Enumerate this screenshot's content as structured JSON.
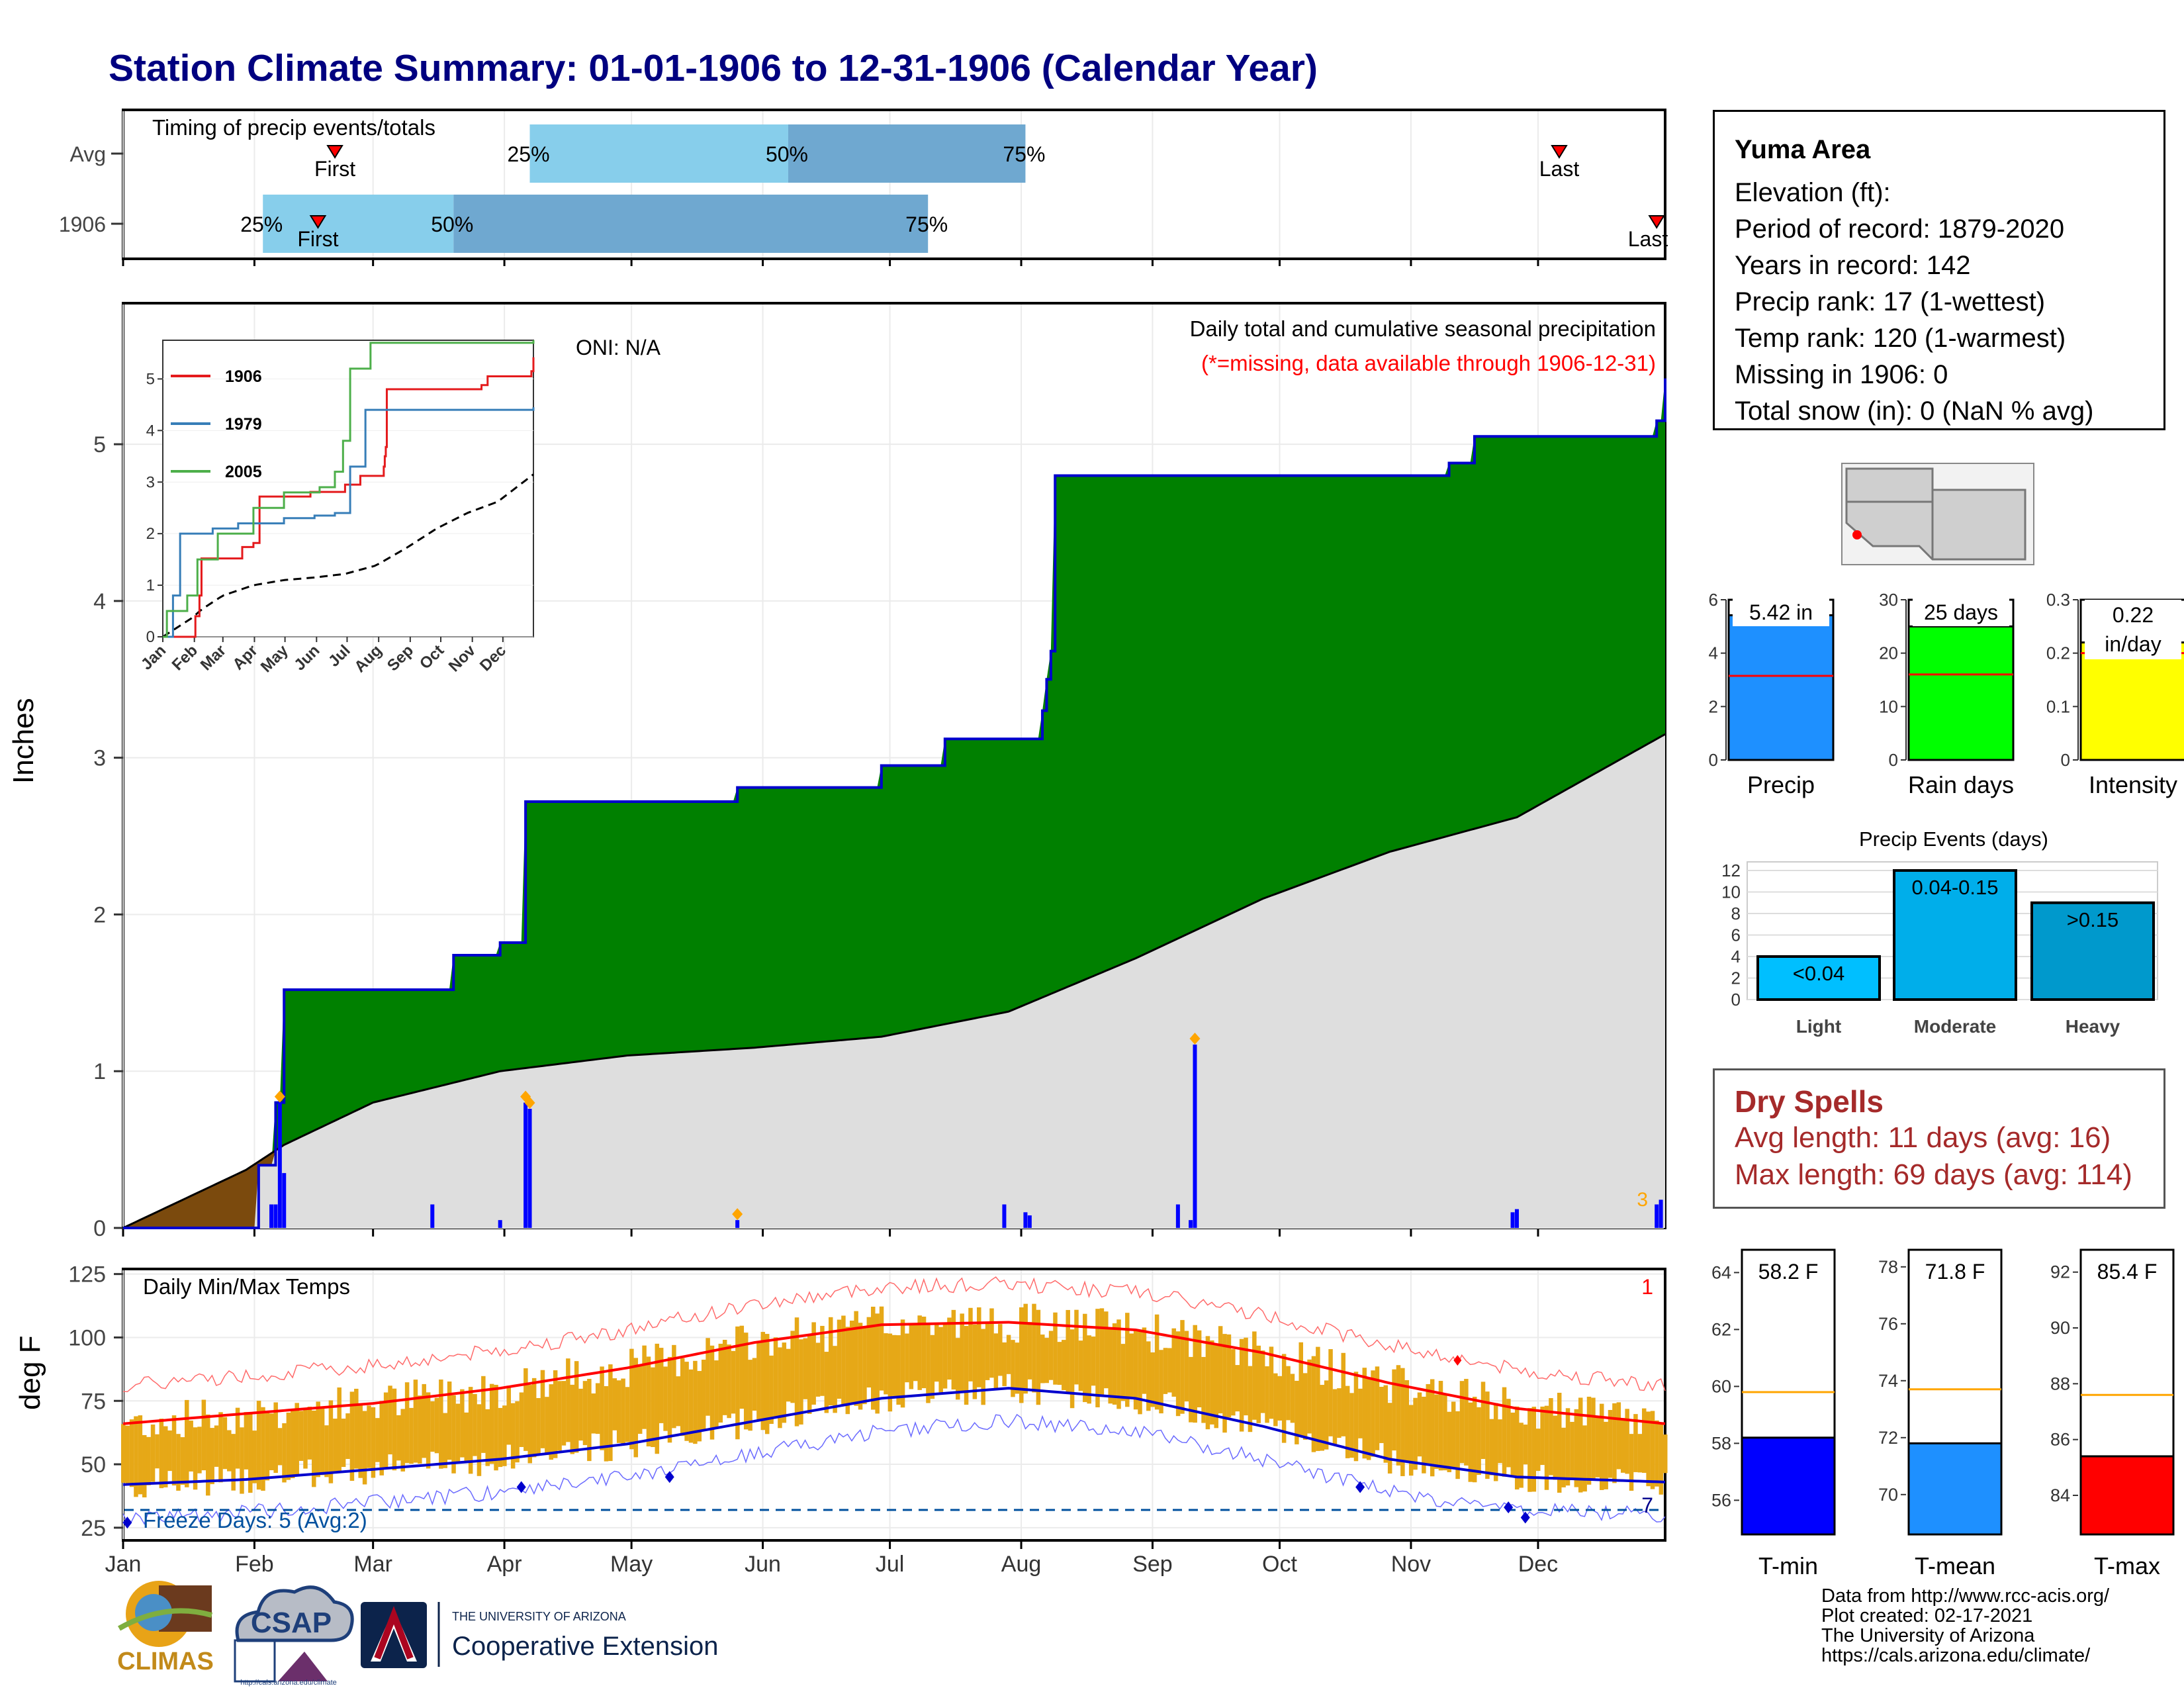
{
  "title": "Station Climate Summary: 01-01-1906 to 12-31-1906 (Calendar Year)",
  "timing": {
    "title": "Timing of precip events/totals",
    "rows": [
      {
        "label": "Avg",
        "first_label": "First",
        "last_label": "Last",
        "first_doy": 51,
        "last_doy": 340,
        "p25": 97,
        "p50": 158,
        "p75": 214
      },
      {
        "label": "1906",
        "first_label": "First",
        "last_label": "Last",
        "first_doy": 47,
        "last_doy": 363,
        "p25": 34,
        "p50": 79,
        "p75": 191
      }
    ],
    "pct_labels": [
      "25%",
      "50%",
      "75%"
    ]
  },
  "info": {
    "station": "Yuma Area",
    "lines": [
      "Elevation (ft):",
      "Period of record: 1879-2020",
      "Years in record: 142",
      "Precip rank: 17 (1-wettest)",
      "Temp rank: 120 (1-warmest)",
      "Missing in 1906: 0",
      "Total snow (in): 0 (NaN % avg)"
    ]
  },
  "precip_panel": {
    "ylabel": "Inches",
    "oni": "ONI: N/A",
    "subtitle": "Daily total and cumulative seasonal precipitation",
    "missing_note": "(*=missing, data available through 1906-12-31)",
    "corner_count": "3"
  },
  "inset": {
    "legend": [
      {
        "name": "1906",
        "color": "#e41a1c"
      },
      {
        "name": "1979",
        "color": "#377eb8"
      },
      {
        "name": "2005",
        "color": "#4daf4a"
      }
    ],
    "months": [
      "Jan",
      "Feb",
      "Mar",
      "Apr",
      "May",
      "Jun",
      "Jul",
      "Aug",
      "Sep",
      "Oct",
      "Nov",
      "Dec"
    ]
  },
  "temp_panel": {
    "title": "Daily Min/Max Temps",
    "ylabel": "deg F",
    "freeze_label": "Freeze Days: 5 (Avg:2)",
    "corner_top": "1",
    "corner_bottom": "7",
    "colors": {
      "normal_max": "#ff0000",
      "normal_min": "#0000cd",
      "bars": "#e6a817"
    }
  },
  "months": [
    "Jan",
    "Feb",
    "Mar",
    "Apr",
    "May",
    "Jun",
    "Jul",
    "Aug",
    "Sep",
    "Oct",
    "Nov",
    "Dec"
  ],
  "mini_bars": [
    {
      "label": "Precip",
      "value_label": "5.42 in",
      "value": 5.42,
      "normal": 3.15,
      "ymax": 6,
      "ticks": [
        0,
        2,
        4,
        6
      ],
      "color": "#1e90ff"
    },
    {
      "label": "Rain days",
      "value_label": "25 days",
      "value": 25,
      "normal": 16,
      "ymax": 30,
      "ticks": [
        0,
        10,
        20,
        30
      ],
      "color": "#00ff00"
    },
    {
      "label": "Intensity",
      "value_label": "0.22 in/day",
      "value": 0.22,
      "normal": 0.2,
      "ymax": 0.3,
      "ticks": [
        0.0,
        0.1,
        0.2,
        0.3
      ],
      "color": "#ffff00"
    }
  ],
  "events": {
    "title": "Precip Events (days)",
    "categories": [
      "Light",
      "Moderate",
      "Heavy"
    ],
    "labels": [
      "<0.04",
      "0.04-0.15",
      ">0.15"
    ],
    "values": [
      4,
      12,
      9
    ],
    "colors": [
      "#00bfff",
      "#00aeea",
      "#0099cc"
    ],
    "ticks": [
      0,
      2,
      4,
      6,
      8,
      10,
      12
    ]
  },
  "dry_spells": {
    "title": "Dry Spells",
    "avg": "Avg length: 11 days (avg: 16)",
    "max": "Max length: 69 days (avg: 114)"
  },
  "temp_bars": [
    {
      "label": "T-min",
      "value_label": "58.2 F",
      "value": 58.2,
      "normal": 59.8,
      "ymin": 54.8,
      "ymax": 64.8,
      "ticks": [
        56,
        58,
        60,
        62,
        64
      ],
      "color": "#0000ff"
    },
    {
      "label": "T-mean",
      "value_label": "71.8 F",
      "value": 71.8,
      "normal": 73.7,
      "ymin": 68.6,
      "ymax": 78.6,
      "ticks": [
        70,
        72,
        74,
        76,
        78
      ],
      "color": "#1e90ff"
    },
    {
      "label": "T-max",
      "value_label": "85.4 F",
      "value": 85.4,
      "normal": 87.6,
      "ymin": 82.6,
      "ymax": 92.8,
      "ticks": [
        84,
        86,
        88,
        90,
        92
      ],
      "color": "#ff0000"
    }
  ],
  "logos": {
    "climas": "CLIMAS",
    "csap": "CSAP",
    "csap_url": "http://cals.arizona.edu/climate",
    "ua_top": "THE UNIVERSITY OF ARIZONA",
    "ua_bottom": "Cooperative Extension"
  },
  "credits": [
    "Data from http://www.rcc-acis.org/",
    "Plot created: 02-17-2021",
    "The University of Arizona",
    "https://cals.arizona.edu/climate/"
  ],
  "chart_data": [
    {
      "type": "bar",
      "title": "Timing of precip events/totals",
      "categories": [
        "Avg",
        "1906"
      ],
      "series": [
        {
          "name": "First",
          "values": [
            51,
            47
          ]
        },
        {
          "name": "25%",
          "values": [
            97,
            34
          ]
        },
        {
          "name": "50%",
          "values": [
            158,
            79
          ]
        },
        {
          "name": "75%",
          "values": [
            214,
            191
          ]
        },
        {
          "name": "Last",
          "values": [
            340,
            363
          ]
        }
      ]
    },
    {
      "type": "area",
      "title": "Daily total and cumulative seasonal precipitation",
      "ylabel": "Inches",
      "ylim": [
        0,
        5.9
      ],
      "series": [
        {
          "name": "1906",
          "x": [
            1,
            33,
            37,
            39,
            73,
            79,
            90,
            96,
            109,
            146,
            171,
            180,
            195,
            211,
            218,
            219,
            220,
            221,
            313,
            314,
            320,
            363,
            365
          ],
          "y": [
            0.0,
            0.4,
            0.8,
            1.52,
            1.52,
            1.74,
            1.82,
            2.72,
            2.72,
            2.81,
            2.81,
            2.95,
            3.12,
            3.12,
            3.3,
            3.5,
            3.68,
            4.8,
            4.8,
            4.88,
            5.05,
            5.15,
            5.42
          ]
        },
        {
          "name": "Average",
          "x": [
            1,
            30,
            39,
            60,
            90,
            120,
            150,
            180,
            210,
            240,
            270,
            300,
            330,
            365
          ],
          "y": [
            0.0,
            0.37,
            0.53,
            0.8,
            1.0,
            1.1,
            1.15,
            1.22,
            1.38,
            1.72,
            2.1,
            2.4,
            2.62,
            3.15
          ]
        }
      ],
      "daily": {
        "x": [
          36,
          37,
          38,
          39,
          74,
          90,
          96,
          97,
          146,
          209,
          214,
          215,
          250,
          253,
          254,
          329,
          330,
          363,
          364
        ],
        "y": [
          0.15,
          0.15,
          0.8,
          0.35,
          0.15,
          0.05,
          0.8,
          0.76,
          0.05,
          0.15,
          0.1,
          0.08,
          0.15,
          0.05,
          1.17,
          0.1,
          0.12,
          0.15,
          0.18
        ]
      }
    },
    {
      "type": "line",
      "title": "Daily Min/Max Temps",
      "ylabel": "deg F",
      "ylim": [
        20,
        127
      ],
      "series": [
        {
          "name": "Normal max",
          "x": [
            1,
            30,
            60,
            90,
            120,
            150,
            180,
            210,
            240,
            270,
            300,
            330,
            365
          ],
          "y": [
            66,
            70,
            74,
            80,
            88,
            98,
            105,
            106,
            103,
            94,
            82,
            72,
            66
          ]
        },
        {
          "name": "Normal min",
          "x": [
            1,
            30,
            60,
            90,
            120,
            150,
            180,
            210,
            240,
            270,
            300,
            330,
            365
          ],
          "y": [
            42,
            44,
            48,
            52,
            58,
            67,
            76,
            80,
            76,
            65,
            52,
            45,
            43
          ]
        }
      ]
    }
  ]
}
